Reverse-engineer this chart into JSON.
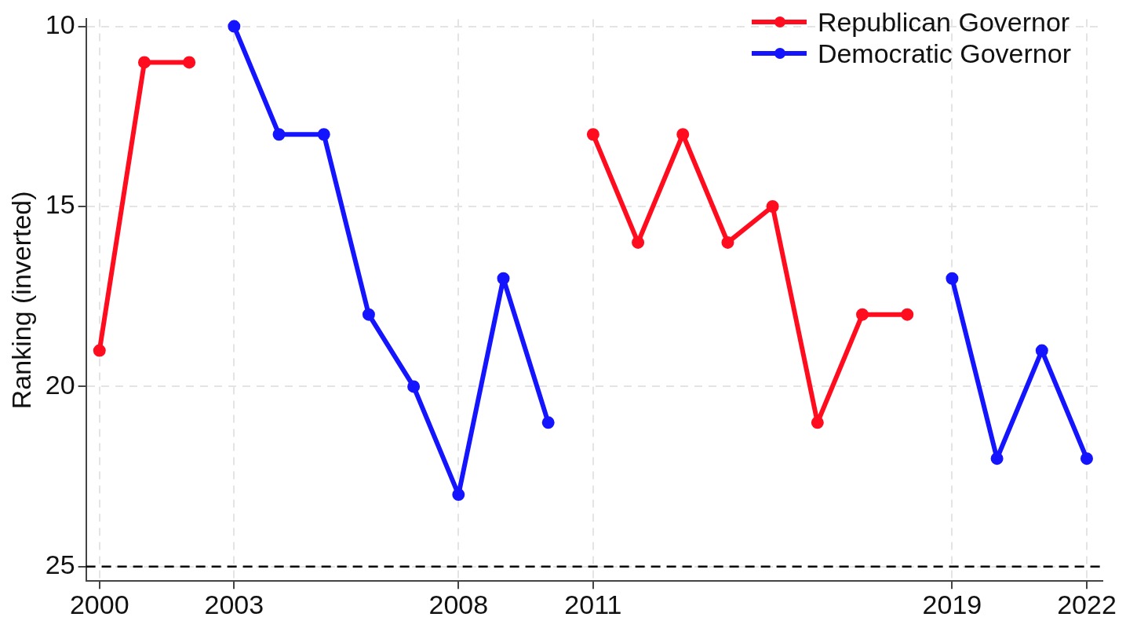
{
  "chart_data": {
    "type": "line",
    "ylabel": "Ranking (inverted)",
    "x": [
      2000,
      2001,
      2002,
      2003,
      2004,
      2005,
      2006,
      2007,
      2008,
      2009,
      2010,
      2011,
      2012,
      2013,
      2014,
      2015,
      2016,
      2017,
      2018,
      2019,
      2020,
      2021,
      2022
    ],
    "series": [
      {
        "name": "Republican Governor",
        "color": "#ff0d1f",
        "values": [
          19,
          11,
          11,
          null,
          null,
          null,
          null,
          null,
          null,
          null,
          null,
          13,
          16,
          13,
          16,
          15,
          21,
          18,
          18,
          null,
          null,
          null,
          null
        ]
      },
      {
        "name": "Democratic Governor",
        "color": "#1414ff",
        "values": [
          null,
          null,
          null,
          10,
          13,
          13,
          18,
          20,
          23,
          17,
          21,
          null,
          null,
          null,
          null,
          null,
          null,
          null,
          null,
          17,
          22,
          19,
          22
        ]
      }
    ],
    "xlim": [
      1999.7,
      2022.35
    ],
    "xticks": [
      2000,
      2003,
      2008,
      2011,
      2019,
      2022
    ],
    "ylim": [
      25.4,
      9.8
    ],
    "yticks": [
      10,
      15,
      20,
      25
    ],
    "ref_lines": [
      {
        "axis": "y",
        "value": 25,
        "color": "#000000",
        "line_style": "dashed"
      }
    ],
    "grid": true,
    "legend": "top right",
    "marker": "circle",
    "line_style": "solid"
  }
}
